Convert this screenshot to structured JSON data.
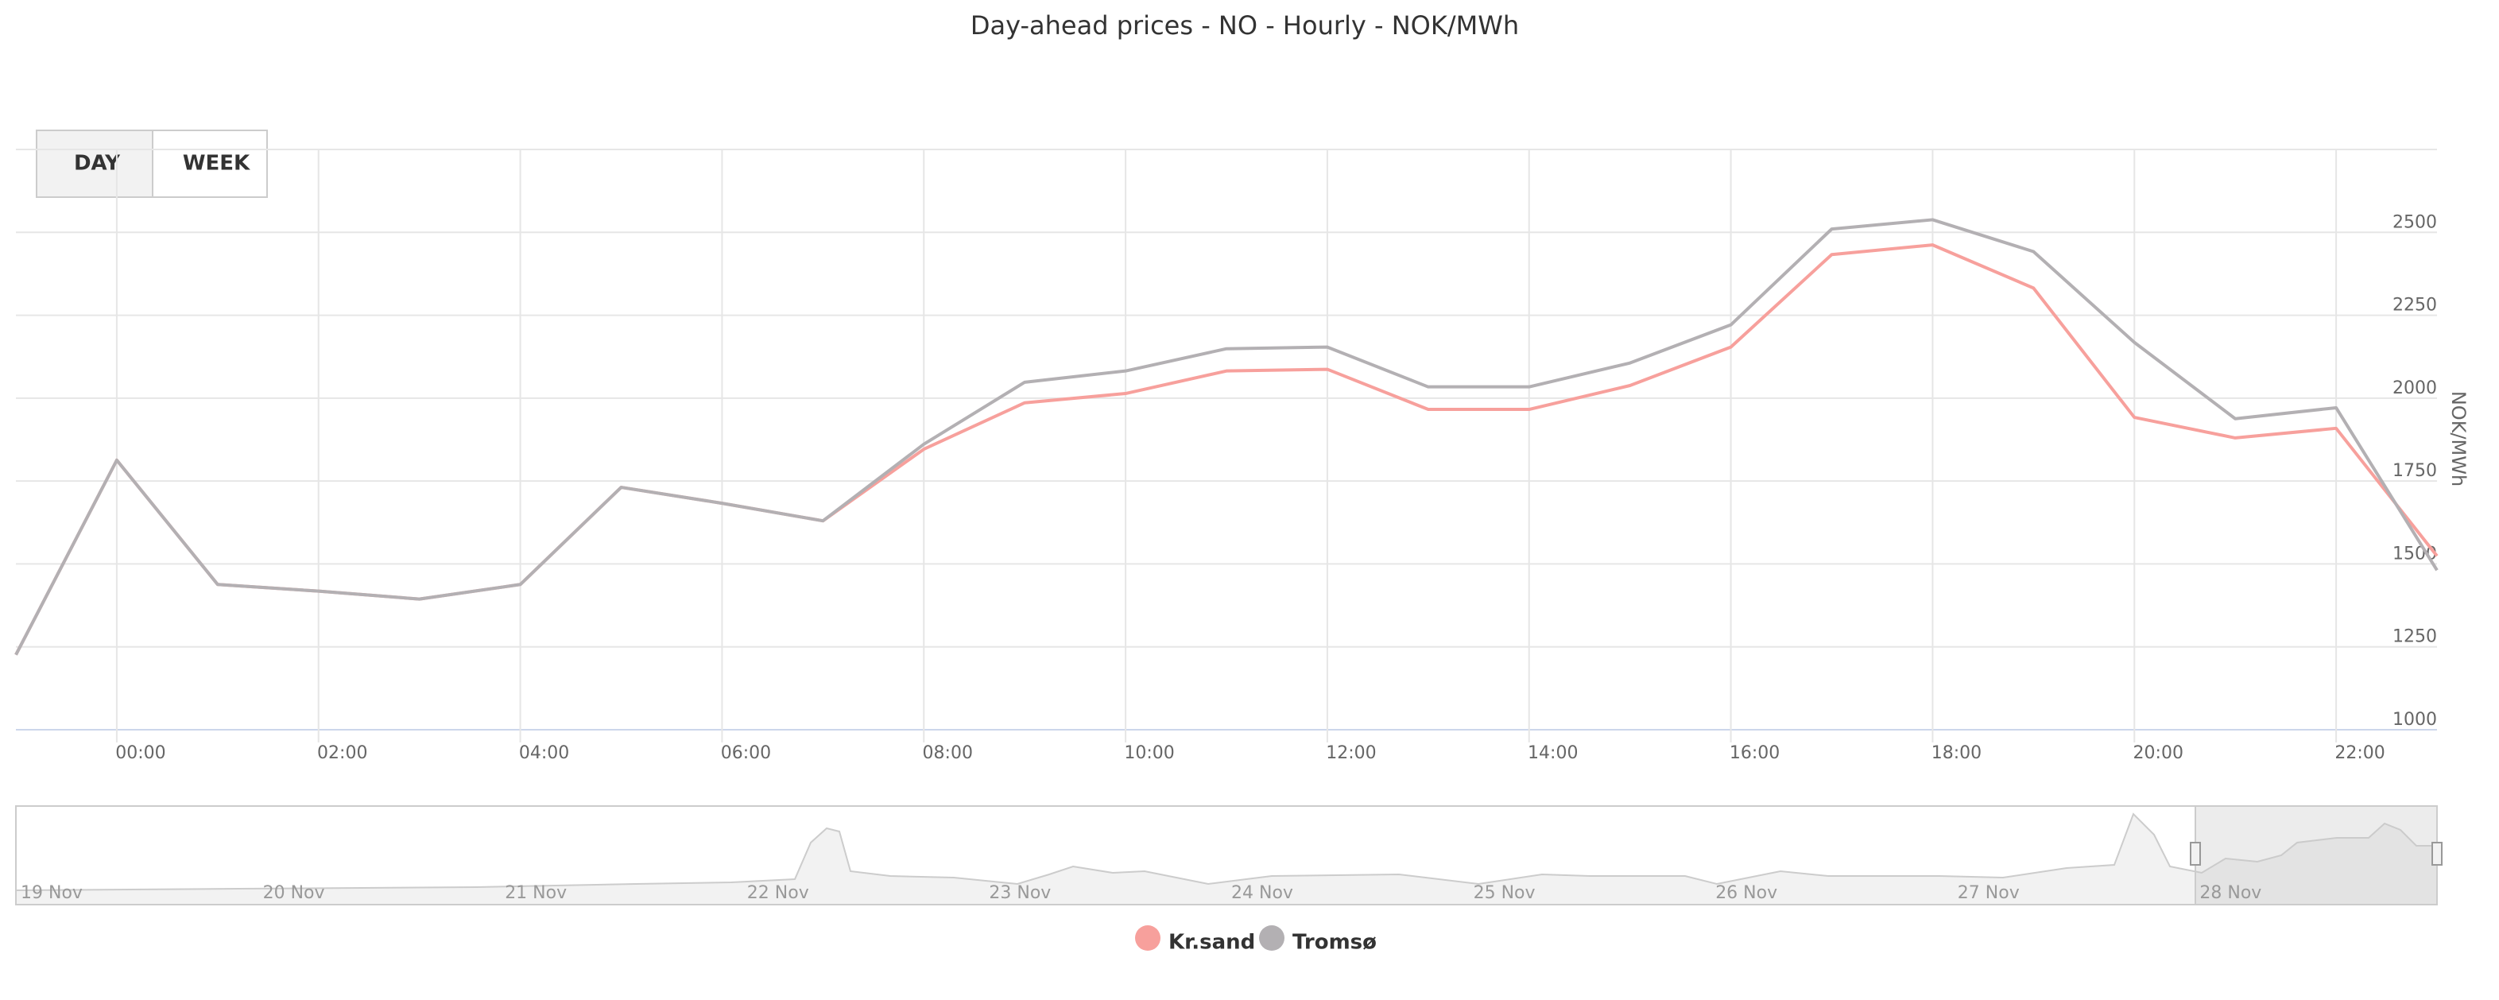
{
  "chart_data": {
    "type": "line",
    "title": "Day-ahead prices - NO - Hourly - NOK/MWh",
    "y_label": "NOK/MWh",
    "buttons": [
      "DAY",
      "WEEK"
    ],
    "categories": [
      null,
      "00:00",
      null,
      "02:00",
      null,
      "04:00",
      null,
      "06:00",
      null,
      "08:00",
      null,
      "10:00",
      null,
      "12:00",
      null,
      "14:00",
      null,
      "16:00",
      null,
      "18:00",
      null,
      "20:00",
      null,
      "22:00",
      null
    ],
    "series": [
      {
        "name": "Kr.sand",
        "color": "#f7a09c",
        "values": [
          1226,
          1813,
          1438,
          1418,
          1394,
          1438,
          1731,
          1683,
          1630,
          1846,
          1986,
          2014,
          2082,
          2087,
          1966,
          1966,
          2038,
          2154,
          2433,
          2462,
          2332,
          1942,
          1880,
          1909,
          1524
        ]
      },
      {
        "name": "Tromsø",
        "color": "#b3b0b3",
        "values": [
          1226,
          1813,
          1438,
          1418,
          1394,
          1438,
          1731,
          1683,
          1630,
          1861,
          2048,
          2082,
          2149,
          2154,
          2034,
          2034,
          2106,
          2221,
          2510,
          2538,
          2442,
          2168,
          1938,
          1971,
          1481
        ]
      }
    ],
    "ylim": [
      1000,
      2750
    ],
    "yticks": [
      1000,
      1250,
      1500,
      1750,
      2000,
      2250,
      2500
    ],
    "grid": true,
    "navigator_labels": [
      "19 Nov",
      "20 Nov",
      "21 Nov",
      "22 Nov",
      "23 Nov",
      "24 Nov",
      "25 Nov",
      "26 Nov",
      "27 Nov",
      "28 Nov"
    ]
  }
}
